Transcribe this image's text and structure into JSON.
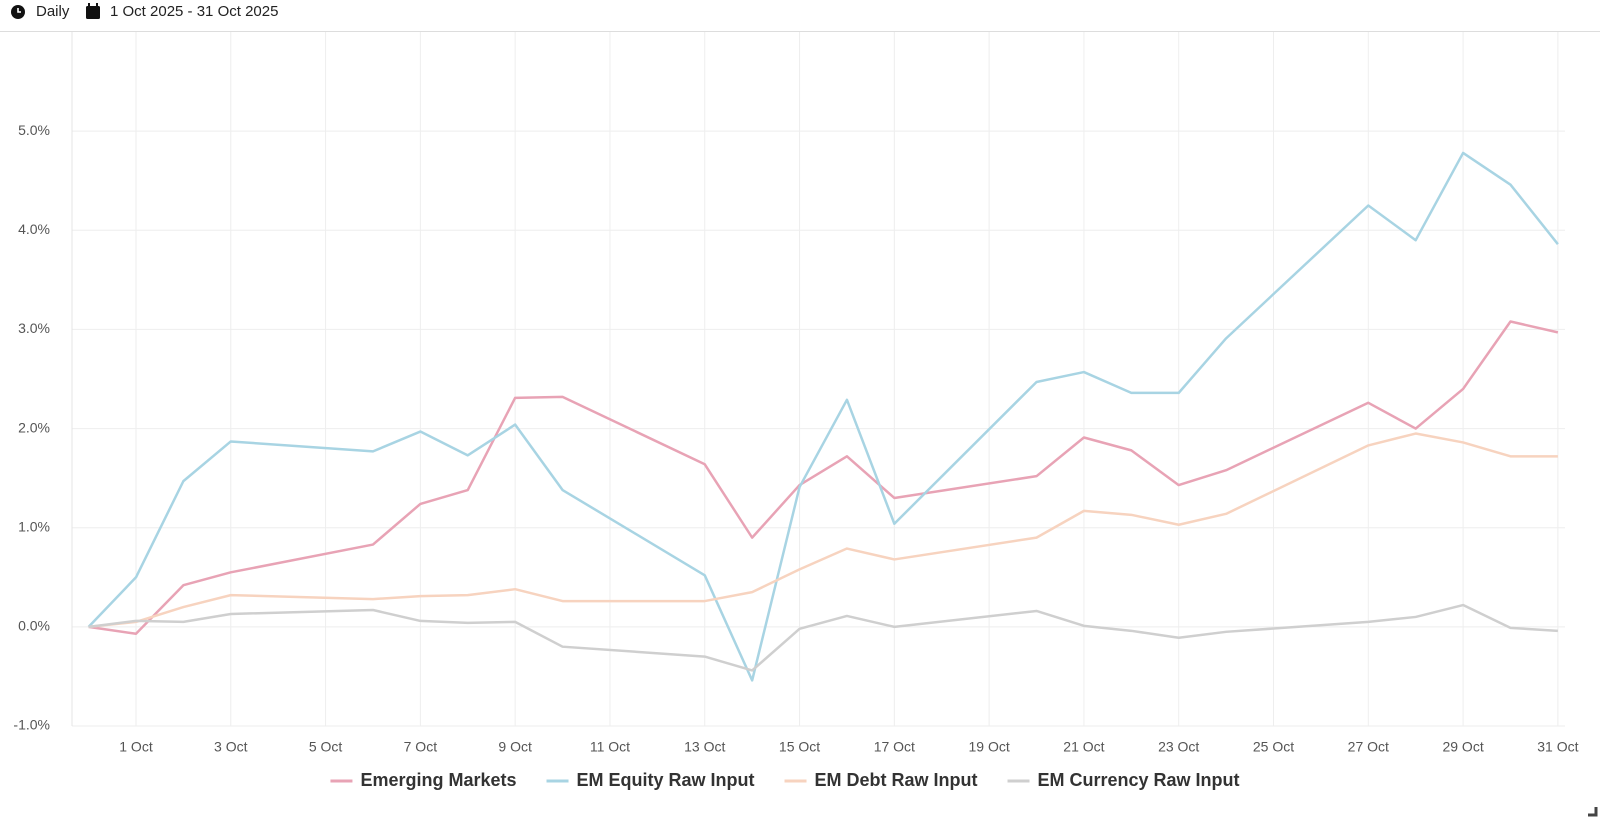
{
  "header": {
    "interval": "Daily",
    "date_range": "1 Oct 2025 - 31 Oct 2025"
  },
  "chart_data": {
    "type": "line",
    "x": [
      0,
      1,
      2,
      3,
      6,
      7,
      8,
      9,
      10,
      13,
      14,
      15,
      16,
      17,
      20,
      21,
      22,
      23,
      24,
      27,
      28,
      29,
      30,
      31
    ],
    "xlim": [
      -0.35,
      31.15
    ],
    "xticks": [
      {
        "value": 1,
        "label": "1 Oct"
      },
      {
        "value": 3,
        "label": "3 Oct"
      },
      {
        "value": 5,
        "label": "5 Oct"
      },
      {
        "value": 7,
        "label": "7 Oct"
      },
      {
        "value": 9,
        "label": "9 Oct"
      },
      {
        "value": 11,
        "label": "11 Oct"
      },
      {
        "value": 13,
        "label": "13 Oct"
      },
      {
        "value": 15,
        "label": "15 Oct"
      },
      {
        "value": 17,
        "label": "17 Oct"
      },
      {
        "value": 19,
        "label": "19 Oct"
      },
      {
        "value": 21,
        "label": "21 Oct"
      },
      {
        "value": 23,
        "label": "23 Oct"
      },
      {
        "value": 25,
        "label": "25 Oct"
      },
      {
        "value": 27,
        "label": "27 Oct"
      },
      {
        "value": 29,
        "label": "29 Oct"
      },
      {
        "value": 31,
        "label": "31 Oct"
      }
    ],
    "ylim": [
      -1,
      6
    ],
    "yticks": [
      {
        "value": -1,
        "label": "-1.0%"
      },
      {
        "value": 0,
        "label": "0.0%"
      },
      {
        "value": 1,
        "label": "1.0%"
      },
      {
        "value": 2,
        "label": "2.0%"
      },
      {
        "value": 3,
        "label": "3.0%"
      },
      {
        "value": 4,
        "label": "4.0%"
      },
      {
        "value": 5,
        "label": "5.0%"
      }
    ],
    "grid": true,
    "series": [
      {
        "name": "Emerging Markets",
        "color": "#e8a3b5",
        "values": [
          0,
          -0.07,
          0.42,
          0.55,
          0.83,
          1.24,
          1.38,
          2.31,
          2.32,
          1.64,
          0.9,
          1.43,
          1.72,
          1.3,
          1.52,
          1.91,
          1.78,
          1.43,
          1.58,
          2.26,
          2.0,
          2.4,
          3.08,
          2.97
        ]
      },
      {
        "name": "EM Equity Raw Input",
        "color": "#a8d4e3",
        "values": [
          0,
          0.5,
          1.47,
          1.87,
          1.77,
          1.97,
          1.73,
          2.04,
          1.38,
          0.52,
          -0.54,
          1.41,
          2.29,
          1.04,
          2.47,
          2.57,
          2.36,
          2.36,
          2.91,
          4.25,
          3.9,
          4.78,
          4.46,
          3.86
        ]
      },
      {
        "name": "EM Debt Raw Input",
        "color": "#f7d3bf",
        "values": [
          0,
          0.05,
          0.2,
          0.32,
          0.28,
          0.31,
          0.32,
          0.38,
          0.26,
          0.26,
          0.35,
          0.58,
          0.79,
          0.68,
          0.9,
          1.17,
          1.13,
          1.03,
          1.14,
          1.83,
          1.95,
          1.86,
          1.72,
          1.72
        ]
      },
      {
        "name": "EM Currency Raw Input",
        "color": "#cfcfcf",
        "values": [
          0,
          0.06,
          0.05,
          0.13,
          0.17,
          0.06,
          0.04,
          0.05,
          -0.2,
          -0.3,
          -0.44,
          -0.02,
          0.11,
          0,
          0.16,
          0.01,
          -0.04,
          -0.11,
          -0.05,
          0.05,
          0.1,
          0.22,
          -0.01,
          -0.04
        ]
      }
    ]
  }
}
